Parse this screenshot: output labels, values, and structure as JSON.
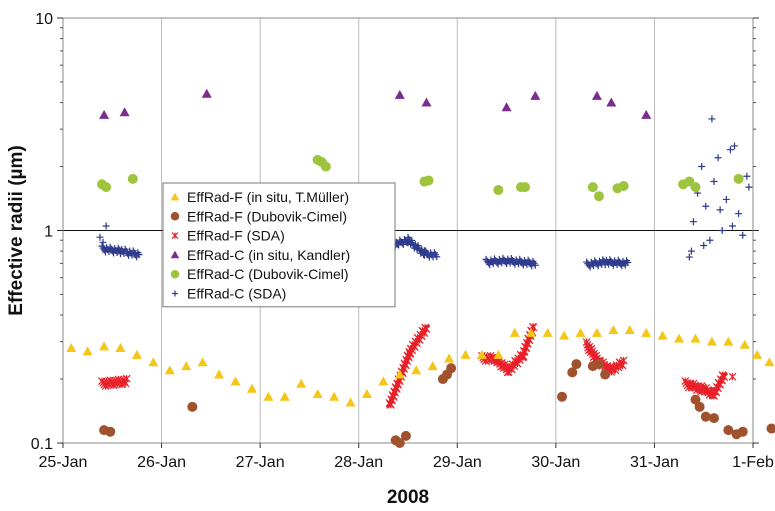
{
  "chart_data": {
    "type": "scatter",
    "title": "",
    "xlabel": "2008",
    "ylabel": "Effective radii (µm)",
    "x_scale": "date",
    "y_scale": "log",
    "xlim": [
      "2008-01-25",
      "2008-02-01"
    ],
    "ylim": [
      0.1,
      10
    ],
    "x_tick_labels": [
      "25-Jan",
      "26-Jan",
      "27-Jan",
      "28-Jan",
      "29-Jan",
      "30-Jan",
      "31-Jan",
      "1-Feb"
    ],
    "y_tick_labels": [
      "0.1",
      "1",
      "10"
    ],
    "reference_line": 1,
    "grid": "vertical only",
    "legend_position": "left-center",
    "series": [
      {
        "name": "EffRad-F (in situ, T.Müller)",
        "marker": "triangle",
        "color": "#F5C518",
        "points": [
          [
            "2008-01-25 02:00",
            0.28
          ],
          [
            "2008-01-25 06:00",
            0.27
          ],
          [
            "2008-01-25 10:00",
            0.285
          ],
          [
            "2008-01-25 14:00",
            0.28
          ],
          [
            "2008-01-25 18:00",
            0.26
          ],
          [
            "2008-01-25 22:00",
            0.24
          ],
          [
            "2008-01-26 02:00",
            0.22
          ],
          [
            "2008-01-26 06:00",
            0.23
          ],
          [
            "2008-01-26 10:00",
            0.24
          ],
          [
            "2008-01-26 14:00",
            0.21
          ],
          [
            "2008-01-26 18:00",
            0.195
          ],
          [
            "2008-01-26 22:00",
            0.18
          ],
          [
            "2008-01-27 02:00",
            0.165
          ],
          [
            "2008-01-27 06:00",
            0.165
          ],
          [
            "2008-01-27 10:00",
            0.19
          ],
          [
            "2008-01-27 14:00",
            0.17
          ],
          [
            "2008-01-27 18:00",
            0.165
          ],
          [
            "2008-01-27 22:00",
            0.155
          ],
          [
            "2008-01-28 02:00",
            0.17
          ],
          [
            "2008-01-28 06:00",
            0.195
          ],
          [
            "2008-01-28 10:00",
            0.21
          ],
          [
            "2008-01-28 14:00",
            0.22
          ],
          [
            "2008-01-28 18:00",
            0.23
          ],
          [
            "2008-01-28 22:00",
            0.25
          ],
          [
            "2008-01-29 02:00",
            0.26
          ],
          [
            "2008-01-29 06:00",
            0.26
          ],
          [
            "2008-01-29 10:00",
            0.26
          ],
          [
            "2008-01-29 14:00",
            0.33
          ],
          [
            "2008-01-29 18:00",
            0.33
          ],
          [
            "2008-01-29 22:00",
            0.33
          ],
          [
            "2008-01-30 02:00",
            0.32
          ],
          [
            "2008-01-30 06:00",
            0.33
          ],
          [
            "2008-01-30 10:00",
            0.33
          ],
          [
            "2008-01-30 14:00",
            0.34
          ],
          [
            "2008-01-30 18:00",
            0.34
          ],
          [
            "2008-01-30 22:00",
            0.33
          ],
          [
            "2008-01-31 02:00",
            0.32
          ],
          [
            "2008-01-31 06:00",
            0.31
          ],
          [
            "2008-01-31 10:00",
            0.31
          ],
          [
            "2008-01-31 14:00",
            0.3
          ],
          [
            "2008-01-31 18:00",
            0.3
          ],
          [
            "2008-01-31 22:00",
            0.29
          ],
          [
            "2008-02-01 01:00",
            0.26
          ],
          [
            "2008-02-01 04:00",
            0.24
          ],
          [
            "2008-02-01 08:00",
            0.225
          ]
        ]
      },
      {
        "name": "EffRad-F (Dubovik-Cimel)",
        "marker": "circle",
        "color": "#A0522D",
        "points": [
          [
            "2008-01-25 10:00",
            0.115
          ],
          [
            "2008-01-25 11:30",
            0.113
          ],
          [
            "2008-01-26 07:30",
            0.148
          ],
          [
            "2008-01-28 09:00",
            0.103
          ],
          [
            "2008-01-28 10:00",
            0.1
          ],
          [
            "2008-01-28 11:30",
            0.108
          ],
          [
            "2008-01-28 20:30",
            0.2
          ],
          [
            "2008-01-28 21:30",
            0.21
          ],
          [
            "2008-01-28 22:30",
            0.225
          ],
          [
            "2008-01-30 01:30",
            0.165
          ],
          [
            "2008-01-30 04:00",
            0.215
          ],
          [
            "2008-01-30 05:00",
            0.235
          ],
          [
            "2008-01-30 09:00",
            0.23
          ],
          [
            "2008-01-30 10:30",
            0.235
          ],
          [
            "2008-01-30 12:00",
            0.21
          ],
          [
            "2008-01-31 10:00",
            0.16
          ],
          [
            "2008-01-31 11:00",
            0.148
          ],
          [
            "2008-01-31 12:30",
            0.133
          ],
          [
            "2008-01-31 14:30",
            0.131
          ],
          [
            "2008-01-31 18:00",
            0.115
          ],
          [
            "2008-01-31 20:00",
            0.11
          ],
          [
            "2008-01-31 21:30",
            0.113
          ],
          [
            "2008-02-01 04:30",
            0.117
          ]
        ]
      },
      {
        "name": "EffRad-F (SDA)",
        "marker": "asterisk",
        "color": "#E8202A",
        "segments": [
          [
            [
              "2008-01-25 09:30",
              0.19
            ],
            [
              "2008-01-25 15:30",
              0.195
            ]
          ],
          [
            [
              "2008-01-28 07:30",
              0.15
            ],
            [
              "2008-01-28 12:30",
              0.27
            ],
            [
              "2008-01-28 16:30",
              0.35
            ]
          ],
          [
            [
              "2008-01-29 06:00",
              0.25
            ],
            [
              "2008-01-29 09:00",
              0.25
            ],
            [
              "2008-01-29 12:30",
              0.22
            ],
            [
              "2008-01-29 16:00",
              0.26
            ],
            [
              "2008-01-29 18:30",
              0.35
            ]
          ],
          [
            [
              "2008-01-30 07:30",
              0.29
            ],
            [
              "2008-01-30 10:30",
              0.24
            ],
            [
              "2008-01-30 13:30",
              0.22
            ],
            [
              "2008-01-30 16:30",
              0.24
            ]
          ],
          [
            [
              "2008-01-31 07:30",
              0.19
            ],
            [
              "2008-01-31 11:30",
              0.18
            ],
            [
              "2008-01-31 14:30",
              0.17
            ],
            [
              "2008-01-31 17:00",
              0.21
            ]
          ]
        ],
        "points": [
          [
            "2008-01-31 19:00",
            0.205
          ]
        ]
      },
      {
        "name": "EffRad-C (in situ, Kandler)",
        "marker": "triangle",
        "color": "#7B2D8E",
        "points": [
          [
            "2008-01-25 10:00",
            3.5
          ],
          [
            "2008-01-25 15:00",
            3.6
          ],
          [
            "2008-01-26 11:00",
            4.4
          ],
          [
            "2008-01-28 10:00",
            4.35
          ],
          [
            "2008-01-28 16:30",
            4.0
          ],
          [
            "2008-01-29 12:00",
            3.8
          ],
          [
            "2008-01-29 19:00",
            4.3
          ],
          [
            "2008-01-30 10:00",
            4.3
          ],
          [
            "2008-01-30 13:30",
            4.0
          ],
          [
            "2008-01-30 22:00",
            3.5
          ]
        ]
      },
      {
        "name": "EffRad-C (Dubovik-Cimel)",
        "marker": "circle",
        "color": "#9DC43C",
        "points": [
          [
            "2008-01-25 09:30",
            1.65
          ],
          [
            "2008-01-25 10:30",
            1.6
          ],
          [
            "2008-01-25 17:00",
            1.75
          ],
          [
            "2008-01-27 14:00",
            2.15
          ],
          [
            "2008-01-27 15:00",
            2.1
          ],
          [
            "2008-01-27 16:00",
            2.0
          ],
          [
            "2008-01-28 16:00",
            1.7
          ],
          [
            "2008-01-28 17:00",
            1.72
          ],
          [
            "2008-01-29 10:00",
            1.55
          ],
          [
            "2008-01-29 15:30",
            1.6
          ],
          [
            "2008-01-29 16:30",
            1.6
          ],
          [
            "2008-01-30 09:00",
            1.6
          ],
          [
            "2008-01-30 10:30",
            1.45
          ],
          [
            "2008-01-30 15:00",
            1.58
          ],
          [
            "2008-01-30 16:30",
            1.62
          ],
          [
            "2008-01-31 07:00",
            1.65
          ],
          [
            "2008-01-31 08:30",
            1.7
          ],
          [
            "2008-01-31 10:00",
            1.6
          ],
          [
            "2008-01-31 20:30",
            1.75
          ]
        ]
      },
      {
        "name": "EffRad-C (SDA)",
        "marker": "plus",
        "color": "#2E3A8C",
        "segments": [
          [
            [
              "2008-01-25 09:30",
              0.82
            ],
            [
              "2008-01-25 14:00",
              0.8
            ],
            [
              "2008-01-25 18:30",
              0.77
            ]
          ],
          [
            [
              "2008-01-28 08:00",
              0.85
            ],
            [
              "2008-01-28 12:00",
              0.9
            ],
            [
              "2008-01-28 16:00",
              0.78
            ],
            [
              "2008-01-28 19:00",
              0.76
            ]
          ],
          [
            [
              "2008-01-29 07:00",
              0.71
            ],
            [
              "2008-01-29 12:00",
              0.72
            ],
            [
              "2008-01-29 19:00",
              0.7
            ]
          ],
          [
            [
              "2008-01-30 07:30",
              0.69
            ],
            [
              "2008-01-30 12:00",
              0.71
            ],
            [
              "2008-01-30 17:30",
              0.7
            ]
          ]
        ],
        "points": [
          [
            "2008-01-25 09:00",
            0.93
          ],
          [
            "2008-01-25 10:30",
            1.05
          ],
          [
            "2008-01-25 09:45",
            0.88
          ],
          [
            "2008-01-31 08:30",
            0.75
          ],
          [
            "2008-01-31 09:30",
            1.1
          ],
          [
            "2008-01-31 10:30",
            1.5
          ],
          [
            "2008-01-31 11:30",
            2.0
          ],
          [
            "2008-01-31 12:30",
            1.3
          ],
          [
            "2008-01-31 13:30",
            0.9
          ],
          [
            "2008-01-31 14:30",
            1.7
          ],
          [
            "2008-01-31 15:30",
            2.2
          ],
          [
            "2008-01-31 16:30",
            1.0
          ],
          [
            "2008-01-31 17:30",
            1.4
          ],
          [
            "2008-01-31 18:30",
            2.4
          ],
          [
            "2008-01-31 19:30",
            2.5
          ],
          [
            "2008-01-31 20:30",
            1.2
          ],
          [
            "2008-01-31 21:30",
            0.95
          ],
          [
            "2008-01-31 22:30",
            1.8
          ],
          [
            "2008-01-31 14:00",
            3.35
          ],
          [
            "2008-01-31 09:00",
            0.8
          ],
          [
            "2008-01-31 12:00",
            0.85
          ],
          [
            "2008-01-31 16:00",
            1.25
          ],
          [
            "2008-01-31 19:00",
            1.05
          ],
          [
            "2008-01-31 23:00",
            1.6
          ]
        ]
      }
    ]
  }
}
